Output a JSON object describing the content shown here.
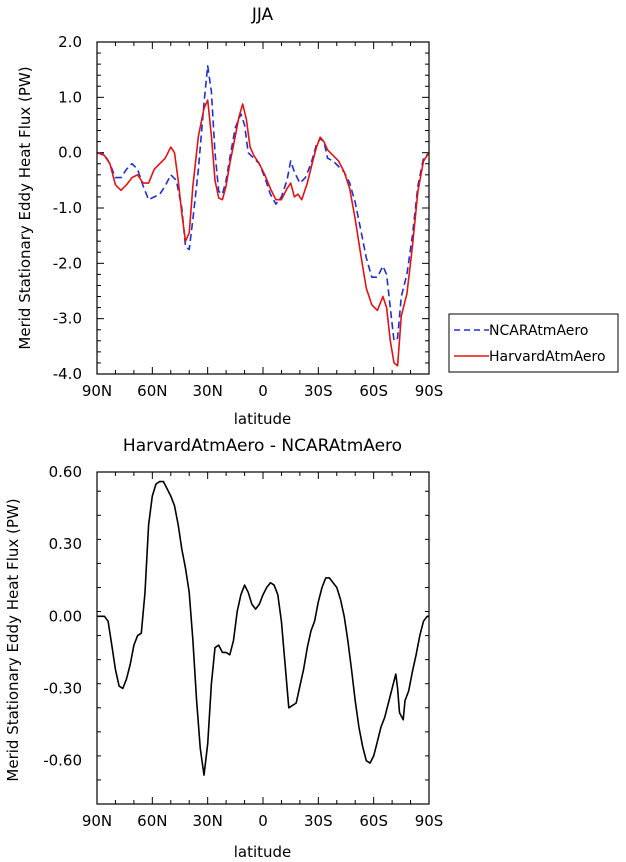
{
  "chart_data": [
    {
      "type": "line",
      "title": "JJA",
      "xlabel": "latitude",
      "ylabel": "Merid Stationary Eddy Heat Flux (PW)",
      "xlim": [
        90,
        -90
      ],
      "ylim": [
        -4.0,
        2.0
      ],
      "x_ticks": [
        90,
        60,
        30,
        0,
        -30,
        -60,
        -90
      ],
      "x_tick_labels": [
        "90N",
        "60N",
        "30N",
        "0",
        "30S",
        "60S",
        "90S"
      ],
      "y_ticks": [
        -4.0,
        -3.0,
        -2.0,
        -1.0,
        0.0,
        1.0,
        2.0
      ],
      "y_tick_labels": [
        "-4.0",
        "-3.0",
        "-2.0",
        "-1.0",
        "0.0",
        "1.0",
        "2.0"
      ],
      "legend": "outside-right",
      "series": [
        {
          "name": "NCARAtmAero",
          "color": "#1f2fd6",
          "dash": "dashed",
          "points": [
            [
              90,
              0.0
            ],
            [
              86,
              -0.03
            ],
            [
              83,
              -0.2
            ],
            [
              80,
              -0.45
            ],
            [
              77,
              -0.45
            ],
            [
              74,
              -0.3
            ],
            [
              71,
              -0.2
            ],
            [
              68,
              -0.3
            ],
            [
              65,
              -0.6
            ],
            [
              62,
              -0.85
            ],
            [
              59,
              -0.8
            ],
            [
              56,
              -0.75
            ],
            [
              53,
              -0.6
            ],
            [
              50,
              -0.4
            ],
            [
              47,
              -0.5
            ],
            [
              44,
              -1.0
            ],
            [
              42,
              -1.7
            ],
            [
              40,
              -1.75
            ],
            [
              38,
              -1.2
            ],
            [
              35,
              -0.3
            ],
            [
              32,
              0.9
            ],
            [
              30,
              1.57
            ],
            [
              28,
              1.1
            ],
            [
              26,
              0.0
            ],
            [
              24,
              -0.7
            ],
            [
              22,
              -0.75
            ],
            [
              20,
              -0.5
            ],
            [
              18,
              -0.1
            ],
            [
              15,
              0.45
            ],
            [
              12,
              0.7
            ],
            [
              10,
              0.5
            ],
            [
              8,
              0.0
            ],
            [
              5,
              -0.1
            ],
            [
              2,
              -0.2
            ],
            [
              -1,
              -0.45
            ],
            [
              -4,
              -0.75
            ],
            [
              -7,
              -0.93
            ],
            [
              -10,
              -0.8
            ],
            [
              -13,
              -0.5
            ],
            [
              -15,
              -0.15
            ],
            [
              -17,
              -0.35
            ],
            [
              -20,
              -0.55
            ],
            [
              -23,
              -0.45
            ],
            [
              -26,
              -0.2
            ],
            [
              -29,
              0.15
            ],
            [
              -31,
              0.25
            ],
            [
              -33,
              0.2
            ],
            [
              -35,
              -0.1
            ],
            [
              -38,
              -0.15
            ],
            [
              -41,
              -0.25
            ],
            [
              -44,
              -0.35
            ],
            [
              -47,
              -0.55
            ],
            [
              -50,
              -0.9
            ],
            [
              -53,
              -1.4
            ],
            [
              -56,
              -1.9
            ],
            [
              -59,
              -2.25
            ],
            [
              -62,
              -2.25
            ],
            [
              -65,
              -2.05
            ],
            [
              -67,
              -2.2
            ],
            [
              -69,
              -2.8
            ],
            [
              -71,
              -3.4
            ],
            [
              -73,
              -3.35
            ],
            [
              -75,
              -2.6
            ],
            [
              -78,
              -2.2
            ],
            [
              -81,
              -1.5
            ],
            [
              -84,
              -0.6
            ],
            [
              -87,
              -0.1
            ],
            [
              -90,
              0.0
            ]
          ]
        },
        {
          "name": "HarvardAtmAero",
          "color": "#e01414",
          "dash": "solid",
          "points": [
            [
              90,
              0.0
            ],
            [
              86,
              -0.05
            ],
            [
              83,
              -0.2
            ],
            [
              80,
              -0.58
            ],
            [
              77,
              -0.68
            ],
            [
              74,
              -0.58
            ],
            [
              71,
              -0.45
            ],
            [
              68,
              -0.4
            ],
            [
              65,
              -0.55
            ],
            [
              62,
              -0.55
            ],
            [
              59,
              -0.3
            ],
            [
              56,
              -0.2
            ],
            [
              53,
              -0.1
            ],
            [
              50,
              0.1
            ],
            [
              48,
              0.0
            ],
            [
              46,
              -0.5
            ],
            [
              44,
              -1.1
            ],
            [
              42,
              -1.6
            ],
            [
              40,
              -1.45
            ],
            [
              38,
              -0.6
            ],
            [
              35,
              0.3
            ],
            [
              32,
              0.8
            ],
            [
              30,
              0.95
            ],
            [
              28,
              0.3
            ],
            [
              26,
              -0.5
            ],
            [
              24,
              -0.82
            ],
            [
              22,
              -0.85
            ],
            [
              20,
              -0.6
            ],
            [
              18,
              -0.2
            ],
            [
              15,
              0.3
            ],
            [
              13,
              0.65
            ],
            [
              11,
              0.88
            ],
            [
              9,
              0.6
            ],
            [
              7,
              0.1
            ],
            [
              5,
              -0.05
            ],
            [
              2,
              -0.2
            ],
            [
              -1,
              -0.4
            ],
            [
              -4,
              -0.65
            ],
            [
              -7,
              -0.85
            ],
            [
              -10,
              -0.85
            ],
            [
              -13,
              -0.65
            ],
            [
              -15,
              -0.55
            ],
            [
              -17,
              -0.8
            ],
            [
              -19,
              -0.75
            ],
            [
              -21,
              -0.85
            ],
            [
              -24,
              -0.55
            ],
            [
              -27,
              -0.15
            ],
            [
              -29,
              0.1
            ],
            [
              -31,
              0.28
            ],
            [
              -33,
              0.2
            ],
            [
              -35,
              0.05
            ],
            [
              -38,
              -0.05
            ],
            [
              -41,
              -0.15
            ],
            [
              -44,
              -0.35
            ],
            [
              -47,
              -0.65
            ],
            [
              -50,
              -1.2
            ],
            [
              -53,
              -1.85
            ],
            [
              -56,
              -2.45
            ],
            [
              -59,
              -2.75
            ],
            [
              -62,
              -2.85
            ],
            [
              -65,
              -2.6
            ],
            [
              -67,
              -2.8
            ],
            [
              -69,
              -3.4
            ],
            [
              -71,
              -3.8
            ],
            [
              -73,
              -3.85
            ],
            [
              -75,
              -2.95
            ],
            [
              -78,
              -2.55
            ],
            [
              -81,
              -1.7
            ],
            [
              -84,
              -0.7
            ],
            [
              -87,
              -0.15
            ],
            [
              -90,
              0.0
            ]
          ]
        }
      ]
    },
    {
      "type": "line",
      "title": "HarvardAtmAero - NCARAtmAero",
      "xlabel": "latitude",
      "ylabel": "Merid Stationary Eddy Heat Flux (PW)",
      "xlim": [
        90,
        -90
      ],
      "ylim": [
        -0.78,
        0.6
      ],
      "x_ticks": [
        90,
        60,
        30,
        0,
        -30,
        -60,
        -90
      ],
      "x_tick_labels": [
        "90N",
        "60N",
        "30N",
        "0",
        "30S",
        "60S",
        "90S"
      ],
      "y_ticks": [
        -0.6,
        -0.3,
        0.0,
        0.3,
        0.6
      ],
      "y_tick_labels": [
        "-0.60",
        "-0.30",
        "0.00",
        "0.30",
        "0.60"
      ],
      "series": [
        {
          "color": "#000000",
          "dash": "solid",
          "points": [
            [
              90,
              0.0
            ],
            [
              86,
              0.0
            ],
            [
              84,
              -0.02
            ],
            [
              82,
              -0.12
            ],
            [
              80,
              -0.22
            ],
            [
              78,
              -0.29
            ],
            [
              76,
              -0.3
            ],
            [
              74,
              -0.26
            ],
            [
              72,
              -0.2
            ],
            [
              70,
              -0.12
            ],
            [
              68,
              -0.08
            ],
            [
              66,
              -0.07
            ],
            [
              64,
              0.1
            ],
            [
              62,
              0.38
            ],
            [
              60,
              0.5
            ],
            [
              58,
              0.55
            ],
            [
              56,
              0.56
            ],
            [
              54,
              0.56
            ],
            [
              52,
              0.53
            ],
            [
              50,
              0.5
            ],
            [
              48,
              0.46
            ],
            [
              46,
              0.38
            ],
            [
              44,
              0.28
            ],
            [
              42,
              0.2
            ],
            [
              40,
              0.1
            ],
            [
              38,
              -0.1
            ],
            [
              36,
              -0.35
            ],
            [
              34,
              -0.55
            ],
            [
              32,
              -0.66
            ],
            [
              30,
              -0.53
            ],
            [
              28,
              -0.28
            ],
            [
              26,
              -0.13
            ],
            [
              24,
              -0.12
            ],
            [
              22,
              -0.15
            ],
            [
              20,
              -0.15
            ],
            [
              18,
              -0.16
            ],
            [
              16,
              -0.1
            ],
            [
              14,
              0.02
            ],
            [
              12,
              0.09
            ],
            [
              10,
              0.13
            ],
            [
              8,
              0.1
            ],
            [
              6,
              0.05
            ],
            [
              4,
              0.03
            ],
            [
              2,
              0.05
            ],
            [
              0,
              0.09
            ],
            [
              -2,
              0.12
            ],
            [
              -4,
              0.14
            ],
            [
              -6,
              0.13
            ],
            [
              -8,
              0.09
            ],
            [
              -10,
              -0.02
            ],
            [
              -12,
              -0.2
            ],
            [
              -14,
              -0.38
            ],
            [
              -16,
              -0.37
            ],
            [
              -18,
              -0.36
            ],
            [
              -20,
              -0.29
            ],
            [
              -22,
              -0.22
            ],
            [
              -24,
              -0.13
            ],
            [
              -26,
              -0.06
            ],
            [
              -28,
              -0.02
            ],
            [
              -30,
              0.06
            ],
            [
              -32,
              0.12
            ],
            [
              -34,
              0.16
            ],
            [
              -36,
              0.16
            ],
            [
              -38,
              0.14
            ],
            [
              -40,
              0.12
            ],
            [
              -42,
              0.07
            ],
            [
              -44,
              0.0
            ],
            [
              -46,
              -0.1
            ],
            [
              -48,
              -0.22
            ],
            [
              -50,
              -0.35
            ],
            [
              -52,
              -0.46
            ],
            [
              -54,
              -0.54
            ],
            [
              -56,
              -0.6
            ],
            [
              -58,
              -0.61
            ],
            [
              -60,
              -0.58
            ],
            [
              -62,
              -0.52
            ],
            [
              -64,
              -0.46
            ],
            [
              -66,
              -0.42
            ],
            [
              -68,
              -0.36
            ],
            [
              -70,
              -0.3
            ],
            [
              -72,
              -0.24
            ],
            [
              -73,
              -0.3
            ],
            [
              -74,
              -0.4
            ],
            [
              -76,
              -0.43
            ],
            [
              -77,
              -0.35
            ],
            [
              -79,
              -0.31
            ],
            [
              -81,
              -0.23
            ],
            [
              -83,
              -0.16
            ],
            [
              -85,
              -0.08
            ],
            [
              -87,
              -0.02
            ],
            [
              -89,
              0.0
            ],
            [
              -90,
              0.0
            ]
          ]
        }
      ]
    }
  ]
}
